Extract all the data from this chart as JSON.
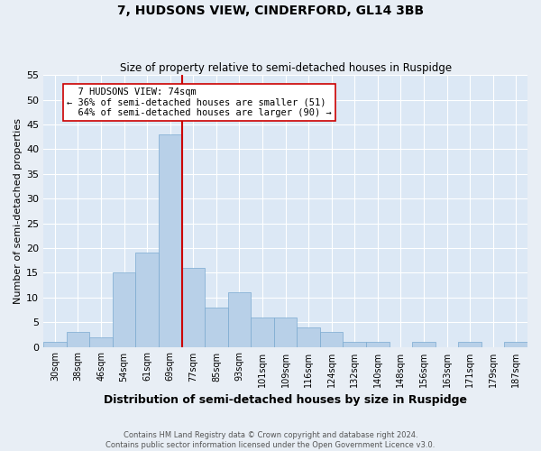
{
  "title": "7, HUDSONS VIEW, CINDERFORD, GL14 3BB",
  "subtitle": "Size of property relative to semi-detached houses in Ruspidge",
  "xlabel": "Distribution of semi-detached houses by size in Ruspidge",
  "ylabel": "Number of semi-detached properties",
  "footer_line1": "Contains HM Land Registry data © Crown copyright and database right 2024.",
  "footer_line2": "Contains public sector information licensed under the Open Government Licence v3.0.",
  "bin_labels": [
    "30sqm",
    "38sqm",
    "46sqm",
    "54sqm",
    "61sqm",
    "69sqm",
    "77sqm",
    "85sqm",
    "93sqm",
    "101sqm",
    "109sqm",
    "116sqm",
    "124sqm",
    "132sqm",
    "140sqm",
    "148sqm",
    "156sqm",
    "163sqm",
    "171sqm",
    "179sqm",
    "187sqm"
  ],
  "bar_heights": [
    1,
    3,
    2,
    15,
    19,
    43,
    16,
    8,
    11,
    6,
    6,
    4,
    3,
    1,
    1,
    0,
    1,
    0,
    1,
    0,
    1
  ],
  "bar_color": "#b8d0e8",
  "bar_edge_color": "#7aaad0",
  "vline_x_index": 5.5,
  "vline_color": "#cc0000",
  "vline_label": "7 HUDSONS VIEW: 74sqm",
  "pct_smaller": 36,
  "pct_larger": 64,
  "n_smaller": 51,
  "n_larger": 90,
  "annotation_box_color": "#ffffff",
  "annotation_box_edge": "#cc0000",
  "ylim": [
    0,
    55
  ],
  "yticks": [
    0,
    5,
    10,
    15,
    20,
    25,
    30,
    35,
    40,
    45,
    50,
    55
  ],
  "bg_color": "#e8eef5",
  "plot_bg_color": "#dce8f5",
  "title_fontsize": 10,
  "subtitle_fontsize": 8.5,
  "ylabel_fontsize": 8,
  "xlabel_fontsize": 9,
  "ytick_fontsize": 8,
  "xtick_fontsize": 7,
  "footer_fontsize": 6,
  "annot_fontsize": 7.5
}
